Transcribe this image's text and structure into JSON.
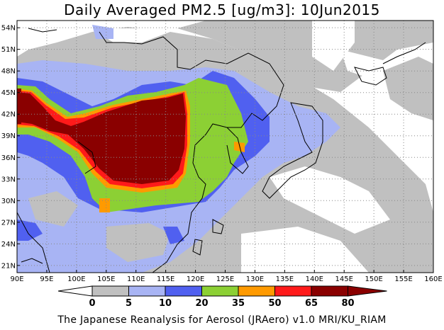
{
  "title": "Daily Averaged PM2.5 [ug/m3]: 10Jun2015",
  "footer": "The Japanese Reanalysis for Aerosol (JRAero) v1.0 MRI/KU_RIAM",
  "map": {
    "lon_range": [
      90,
      160
    ],
    "lat_range": [
      20,
      55
    ],
    "x_ticks": [
      "90E",
      "95E",
      "100E",
      "105E",
      "110E",
      "115E",
      "120E",
      "125E",
      "130E",
      "135E",
      "140E",
      "145E",
      "150E",
      "155E",
      "160E"
    ],
    "y_ticks": [
      "21N",
      "24N",
      "27N",
      "30N",
      "33N",
      "36N",
      "39N",
      "42N",
      "45N",
      "48N",
      "51N",
      "54N"
    ]
  },
  "colorbar": {
    "labels": [
      "0",
      "5",
      "10",
      "20",
      "35",
      "50",
      "65",
      "80"
    ],
    "colors": [
      "#ffffff",
      "#c0c0c0",
      "#a8b4f4",
      "#5060f0",
      "#8cd034",
      "#ff9a00",
      "#ff1a1a",
      "#8a0000"
    ]
  }
}
